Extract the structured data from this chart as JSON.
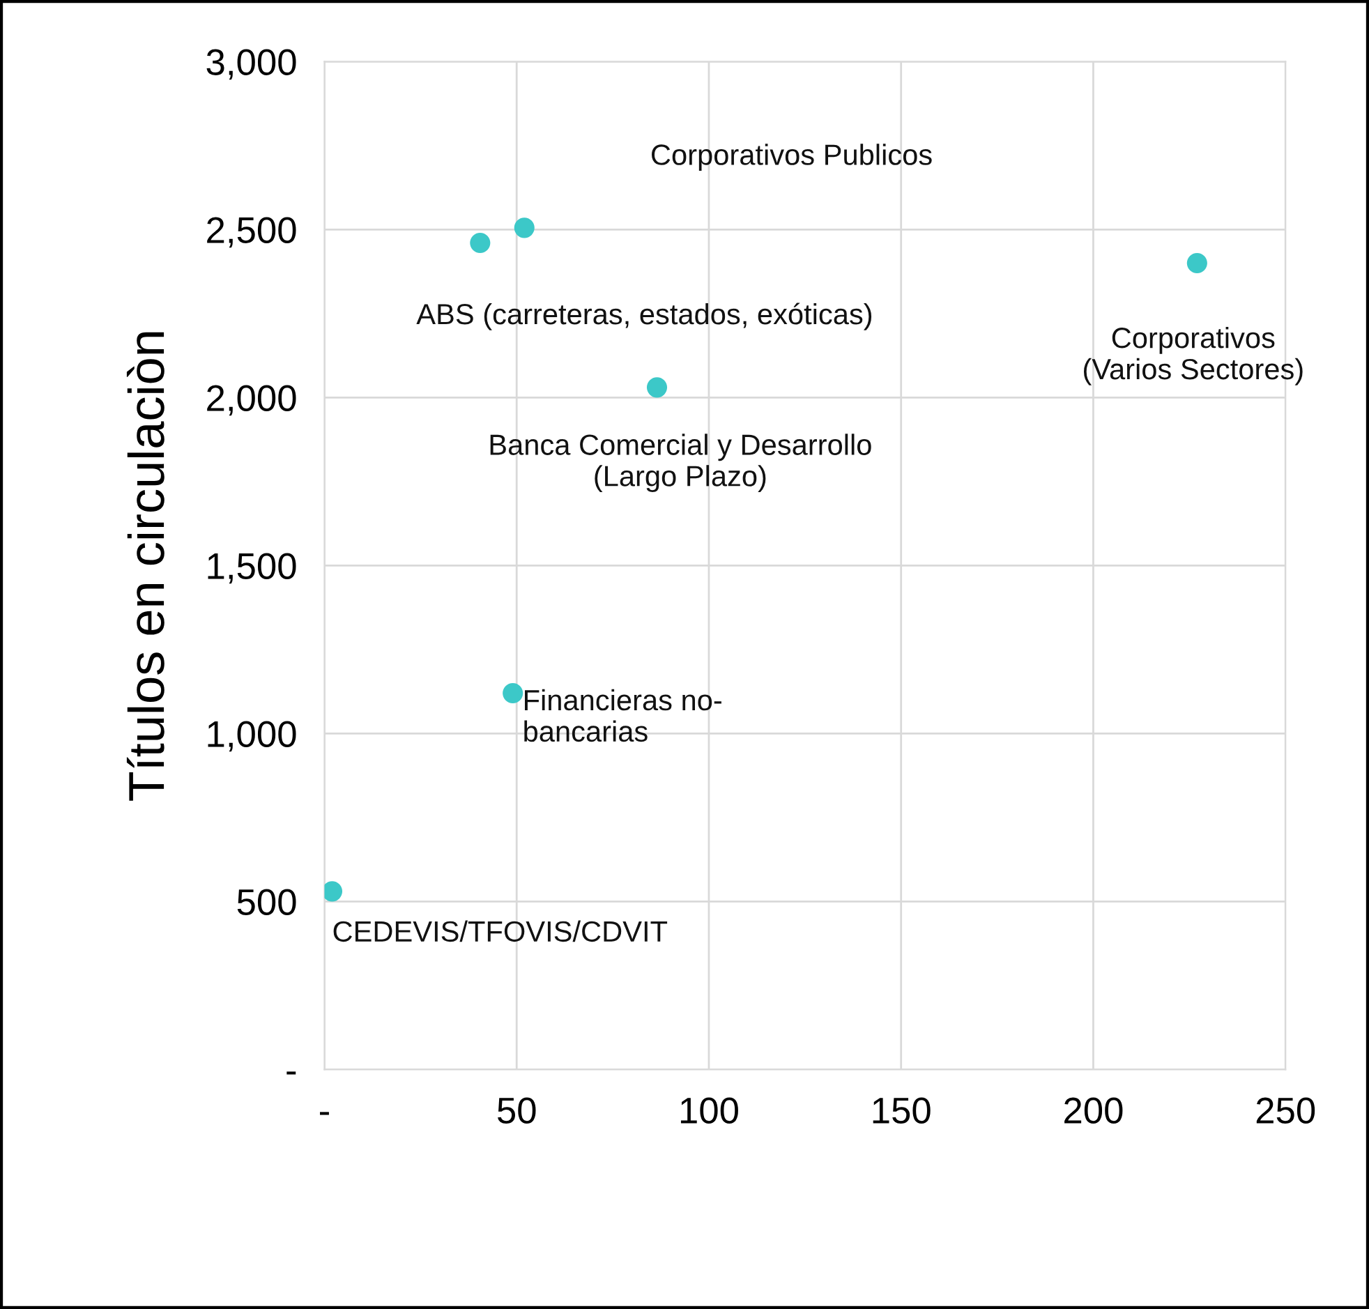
{
  "chart_data": {
    "type": "scatter",
    "ylabel": "Títulos en circulaciòn",
    "x": [
      2,
      40.5,
      52,
      86.5,
      49,
      227
    ],
    "values": [
      530,
      2460,
      2505,
      2030,
      1120,
      2400
    ],
    "color": "#3cc8c8",
    "marker": "circle",
    "xlim": [
      0,
      250
    ],
    "xticks": [
      {
        "value": 0,
        "label": "-"
      },
      50,
      100,
      150,
      200,
      250
    ],
    "ylim": [
      0,
      3000
    ],
    "yticks": [
      {
        "value": 0,
        "label": "-"
      },
      {
        "value": 500,
        "label": "500"
      },
      {
        "value": 1000,
        "label": "1,000"
      },
      {
        "value": 1500,
        "label": "1,500"
      },
      {
        "value": 2000,
        "label": "2,000"
      },
      {
        "value": 2500,
        "label": "2,500"
      },
      {
        "value": 3000,
        "label": "3,000"
      }
    ],
    "grid": true,
    "annotations": [
      {
        "text": "CEDEVIS/TFOVIS/CDVIT",
        "x": 2,
        "y": 530
      },
      {
        "text": "ABS (carreteras, estados, exóticas)",
        "x": 40.5,
        "y": 2460
      },
      "Corporativos Publicos",
      {
        "text": "Banca Comercial y Desarrollo\n(Largo Plazo)",
        "x": 86.5,
        "y": 2030
      },
      {
        "text": "Financieras no-\nbancarias",
        "x": 49,
        "y": 1120
      },
      {
        "text": "Corporativos\n(Varios Sectores)",
        "x": 227,
        "y": 2400
      }
    ]
  }
}
